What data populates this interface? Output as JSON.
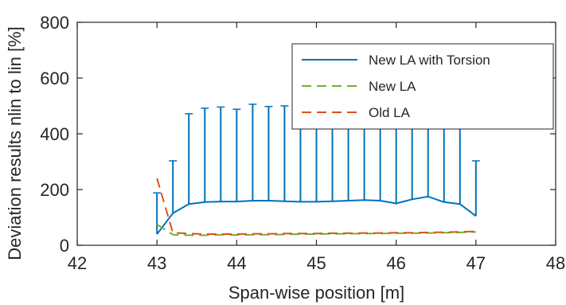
{
  "chart_data": {
    "type": "line",
    "xlabel": "Span-wise position [m]",
    "ylabel": "Deviation results nlin to lin [%]",
    "xlim": [
      42,
      48
    ],
    "ylim": [
      0,
      800
    ],
    "xticks": [
      42,
      43,
      44,
      45,
      46,
      47,
      48
    ],
    "yticks": [
      0,
      200,
      400,
      600,
      800
    ],
    "grid": false,
    "legend_position": "top-right",
    "series": [
      {
        "name": "New LA with Torsion",
        "color": "#0072BD",
        "style": "solid",
        "x": [
          43.0,
          43.2,
          43.4,
          43.6,
          43.8,
          44.0,
          44.2,
          44.4,
          44.6,
          44.8,
          45.0,
          45.2,
          45.4,
          45.6,
          45.8,
          46.0,
          46.2,
          46.4,
          46.6,
          46.8,
          47.0
        ],
        "y": [
          40,
          115,
          148,
          155,
          157,
          157,
          160,
          160,
          158,
          156,
          156,
          158,
          160,
          162,
          160,
          150,
          165,
          175,
          155,
          148,
          105
        ],
        "error_upper": [
          188,
          303,
          472,
          492,
          496,
          488,
          506,
          498,
          500,
          500,
          500,
          500,
          500,
          500,
          500,
          500,
          500,
          500,
          500,
          500,
          303
        ]
      },
      {
        "name": "New LA",
        "color": "#77AC30",
        "style": "dashed",
        "x": [
          43.0,
          43.2,
          43.4,
          43.6,
          43.8,
          44.0,
          44.2,
          44.4,
          44.6,
          44.8,
          45.0,
          45.2,
          45.4,
          45.6,
          45.8,
          46.0,
          46.2,
          46.4,
          46.6,
          46.8,
          47.0
        ],
        "y": [
          75,
          38,
          36,
          36,
          38,
          37,
          38,
          38,
          39,
          40,
          40,
          41,
          41,
          42,
          42,
          43,
          43,
          44,
          45,
          46,
          48
        ]
      },
      {
        "name": "Old LA",
        "color": "#D95319",
        "style": "dashed",
        "x": [
          43.0,
          43.2,
          43.4,
          43.6,
          43.8,
          44.0,
          44.2,
          44.4,
          44.6,
          44.8,
          45.0,
          45.2,
          45.4,
          45.6,
          45.8,
          46.0,
          46.2,
          46.4,
          46.6,
          46.8,
          47.0
        ],
        "y": [
          240,
          45,
          42,
          40,
          40,
          40,
          41,
          41,
          42,
          42,
          42,
          43,
          43,
          44,
          44,
          45,
          45,
          46,
          47,
          48,
          50
        ]
      }
    ]
  }
}
